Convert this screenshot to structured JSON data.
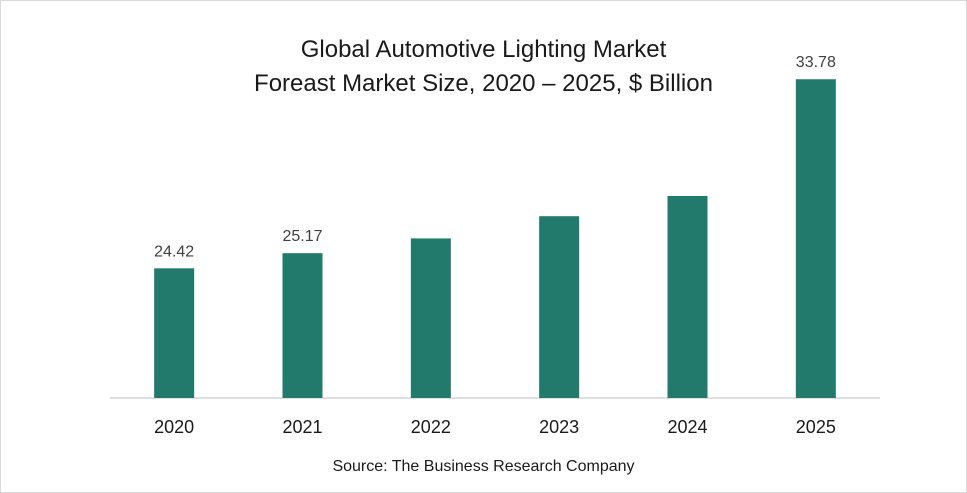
{
  "chart_data": {
    "type": "bar",
    "title": "Global Automotive Lighting Market",
    "subtitle": "Foreast Market Size, 2020 – 2025, $ Billion",
    "xlabel": "",
    "ylabel": "",
    "categories": [
      "2020",
      "2021",
      "2022",
      "2023",
      "2024",
      "2025"
    ],
    "values": [
      24.42,
      25.17,
      25.9,
      27.0,
      28.0,
      33.78
    ],
    "data_labels": [
      "24.42",
      "25.17",
      "",
      "",
      "",
      "33.78"
    ],
    "ylim": [
      0,
      36
    ],
    "grid": false,
    "bar_color": "#217a6b",
    "source": "Source: The Business Research Company"
  }
}
